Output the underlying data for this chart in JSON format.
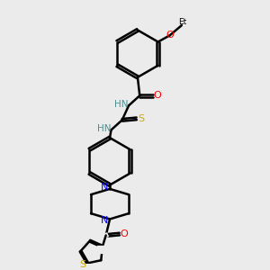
{
  "bg_color": "#ebebeb",
  "line_color": "#000000",
  "bond_lw": 1.8,
  "figsize": [
    3.0,
    3.0
  ],
  "dpi": 100,
  "xlim": [
    0,
    10
  ],
  "ylim": [
    0,
    10
  ],
  "colors": {
    "N": "#0000ff",
    "O": "#ff0000",
    "S": "#ccaa00",
    "NH": "#4a9090",
    "C": "#000000"
  }
}
